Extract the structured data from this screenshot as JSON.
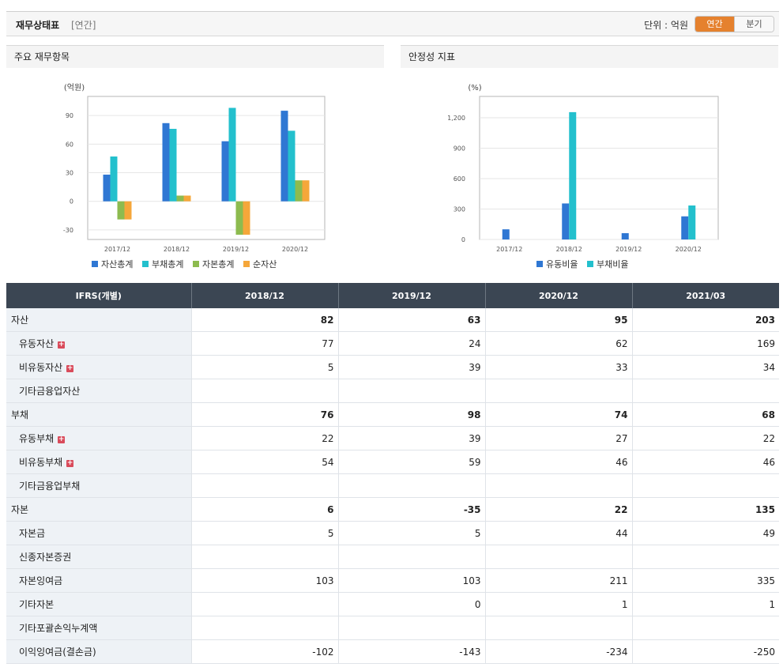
{
  "header": {
    "title": "재무상태표",
    "subtitle": "[연간]",
    "unit": "단위 : 억원",
    "toggle": [
      "연간",
      "분기"
    ]
  },
  "charts_panel": {
    "left_title": "주요 재무항목",
    "right_title": "안정성 지표"
  },
  "chart_data": [
    {
      "type": "bar",
      "title": "주요 재무항목",
      "ylabel": "(억원)",
      "categories": [
        "2017/12",
        "2018/12",
        "2019/12",
        "2020/12"
      ],
      "ylim": [
        -40,
        110
      ],
      "yticks": [
        -30,
        0,
        30,
        60,
        90
      ],
      "ytick_labels": [
        "-30",
        "0",
        "30",
        "60",
        "90"
      ],
      "grid": true,
      "legend": "bottom",
      "series": [
        {
          "name": "자산총계",
          "color": "#2f77d3",
          "values": [
            28,
            82,
            63,
            95
          ]
        },
        {
          "name": "부채총계",
          "color": "#23c0cd",
          "values": [
            47,
            76,
            98,
            74
          ]
        },
        {
          "name": "자본총계",
          "color": "#8dbb4f",
          "values": [
            -19,
            6,
            -35,
            22
          ]
        },
        {
          "name": "순자산",
          "color": "#f5a73a",
          "values": [
            -19,
            6,
            -35,
            22
          ]
        }
      ]
    },
    {
      "type": "bar",
      "title": "안정성 지표",
      "ylabel": "(%)",
      "categories": [
        "2017/12",
        "2018/12",
        "2019/12",
        "2020/12"
      ],
      "ylim": [
        0,
        1410
      ],
      "yticks": [
        0,
        300,
        600,
        900,
        1200
      ],
      "ytick_labels": [
        "0",
        "300",
        "600",
        "900",
        "1,200"
      ],
      "grid": true,
      "legend": "bottom",
      "series": [
        {
          "name": "유동비율",
          "color": "#2f77d3",
          "values": [
            100,
            355,
            62,
            228
          ]
        },
        {
          "name": "부채비율",
          "color": "#23c0cd",
          "values": [
            0,
            1255,
            0,
            335
          ]
        }
      ]
    }
  ],
  "table": {
    "header": [
      "IFRS(개별)",
      "2018/12",
      "2019/12",
      "2020/12",
      "2021/03"
    ],
    "rows": [
      {
        "label": "자산",
        "level": 0,
        "expand": false,
        "values": [
          "82",
          "63",
          "95",
          "203"
        ]
      },
      {
        "label": "유동자산",
        "level": 1,
        "expand": true,
        "values": [
          "77",
          "24",
          "62",
          "169"
        ]
      },
      {
        "label": "비유동자산",
        "level": 1,
        "expand": true,
        "values": [
          "5",
          "39",
          "33",
          "34"
        ]
      },
      {
        "label": "기타금융업자산",
        "level": 1,
        "expand": false,
        "values": [
          "",
          "",
          "",
          ""
        ]
      },
      {
        "label": "부채",
        "level": 0,
        "expand": false,
        "values": [
          "76",
          "98",
          "74",
          "68"
        ]
      },
      {
        "label": "유동부채",
        "level": 1,
        "expand": true,
        "values": [
          "22",
          "39",
          "27",
          "22"
        ]
      },
      {
        "label": "비유동부채",
        "level": 1,
        "expand": true,
        "values": [
          "54",
          "59",
          "46",
          "46"
        ]
      },
      {
        "label": "기타금융업부채",
        "level": 1,
        "expand": false,
        "values": [
          "",
          "",
          "",
          ""
        ]
      },
      {
        "label": "자본",
        "level": 0,
        "expand": false,
        "values": [
          "6",
          "-35",
          "22",
          "135"
        ]
      },
      {
        "label": "자본금",
        "level": 1,
        "expand": false,
        "values": [
          "5",
          "5",
          "44",
          "49"
        ]
      },
      {
        "label": "신종자본증권",
        "level": 1,
        "expand": false,
        "values": [
          "",
          "",
          "",
          ""
        ]
      },
      {
        "label": "자본잉여금",
        "level": 1,
        "expand": false,
        "values": [
          "103",
          "103",
          "211",
          "335"
        ]
      },
      {
        "label": "기타자본",
        "level": 1,
        "expand": false,
        "values": [
          "",
          "0",
          "1",
          "1"
        ]
      },
      {
        "label": "기타포괄손익누계액",
        "level": 1,
        "expand": false,
        "values": [
          "",
          "",
          "",
          ""
        ]
      },
      {
        "label": "이익잉여금(결손금)",
        "level": 1,
        "expand": false,
        "values": [
          "-102",
          "-143",
          "-234",
          "-250"
        ]
      }
    ]
  }
}
